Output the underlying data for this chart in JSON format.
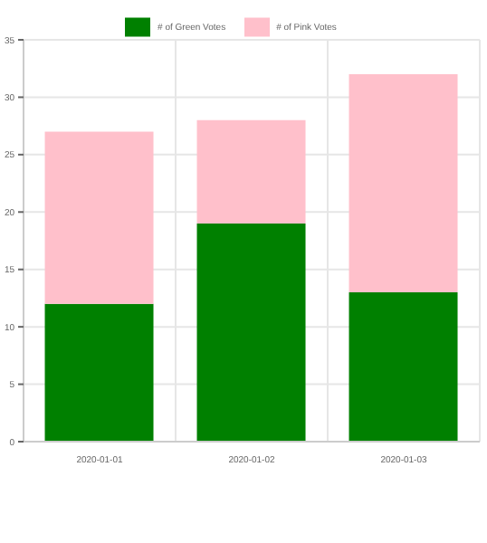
{
  "chart_data": {
    "type": "bar",
    "stacked": true,
    "categories": [
      "2020-01-01",
      "2020-01-02",
      "2020-01-03"
    ],
    "series": [
      {
        "name": "# of Green Votes",
        "color": "#008000",
        "values": [
          12,
          19,
          13
        ]
      },
      {
        "name": "# of Pink Votes",
        "color": "#ffc0cb",
        "values": [
          15,
          9,
          19
        ]
      }
    ],
    "ylim": [
      0,
      35
    ],
    "yticks": [
      0,
      5,
      10,
      15,
      20,
      25,
      30,
      35
    ],
    "grid": true,
    "legend": "top"
  }
}
